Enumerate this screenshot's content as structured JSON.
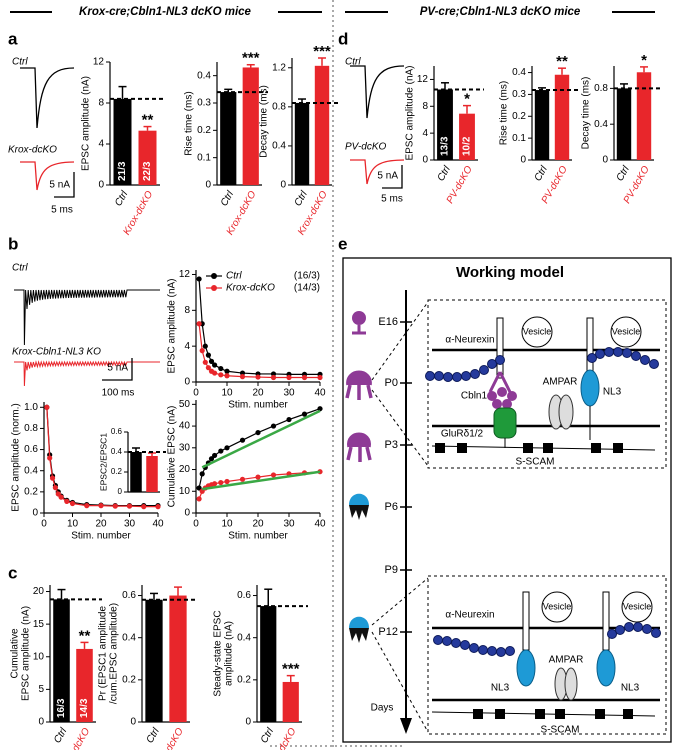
{
  "headers": {
    "left": "Krox-cre;Cbln1-NL3 dcKO mice",
    "right": "PV-cre;Cbln1-NL3 dcKO mice"
  },
  "panel_labels": [
    "a",
    "b",
    "c",
    "d",
    "e"
  ],
  "traces": {
    "a": {
      "labels": [
        "Ctrl",
        "Krox-dcKO"
      ],
      "scale": [
        "5 nA",
        "5 ms"
      ]
    },
    "b": {
      "labels": [
        "Ctrl",
        "Krox-Cbln1-NL3 KO"
      ],
      "scale": [
        "5 nA",
        "100 ms"
      ]
    },
    "d": {
      "labels": [
        "Ctrl",
        "PV-dcKO"
      ],
      "scale": [
        "5 nA",
        "5 ms"
      ]
    }
  },
  "chart_data": [
    {
      "type": "bar",
      "ylabel": [
        "EPSC amplitude (nA)"
      ],
      "categories": [
        "Ctrl",
        "Krox-dcKO"
      ],
      "values": [
        8.4,
        5.3
      ],
      "errors": [
        1.2,
        0.4
      ],
      "colors": [
        "#000000",
        "#e8262b"
      ],
      "ylim": [
        0,
        12
      ],
      "yticks": [
        0,
        4,
        8,
        12
      ],
      "significance": "**",
      "n_labels": [
        "21/3",
        "22/3"
      ],
      "reference_line": true
    },
    {
      "type": "bar",
      "ylabel": [
        "Rise time (ms)"
      ],
      "categories": [
        "Ctrl",
        "Krox-dcKO"
      ],
      "values": [
        0.34,
        0.43
      ],
      "errors": [
        0.01,
        0.01
      ],
      "colors": [
        "#000000",
        "#e8262b"
      ],
      "ylim": [
        0,
        0.45
      ],
      "yticks": [
        0,
        0.1,
        0.2,
        0.3,
        0.4
      ],
      "significance": "***",
      "reference_line": true
    },
    {
      "type": "bar",
      "ylabel": [
        "Decay time (ms)"
      ],
      "categories": [
        "Ctrl",
        "Krox-dcKO"
      ],
      "values": [
        0.84,
        1.22
      ],
      "errors": [
        0.04,
        0.08
      ],
      "colors": [
        "#000000",
        "#e8262b"
      ],
      "ylim": [
        0,
        1.3
      ],
      "yticks": [
        0,
        0.4,
        0.8,
        1.2
      ],
      "significance": "***",
      "reference_line": true
    },
    {
      "type": "bar",
      "ylabel": [
        "EPSC amplitude (nA)"
      ],
      "categories": [
        "Ctrl",
        "PV-dcKO"
      ],
      "values": [
        10.5,
        6.9
      ],
      "errors": [
        1.0,
        1.2
      ],
      "colors": [
        "#000000",
        "#e8262b"
      ],
      "ylim": [
        0,
        14
      ],
      "yticks": [
        0,
        4,
        8,
        12
      ],
      "significance": "*",
      "n_labels": [
        "13/3",
        "10/2"
      ],
      "reference_line": true
    },
    {
      "type": "bar",
      "ylabel": [
        "Rise time (ms)"
      ],
      "categories": [
        "Ctrl",
        "PV-dcKO"
      ],
      "values": [
        0.32,
        0.39
      ],
      "errors": [
        0.01,
        0.03
      ],
      "colors": [
        "#000000",
        "#e8262b"
      ],
      "ylim": [
        0,
        0.43
      ],
      "yticks": [
        0,
        0.1,
        0.2,
        0.3,
        0.4
      ],
      "significance": "**",
      "reference_line": true
    },
    {
      "type": "bar",
      "ylabel": [
        "Decay time (ms)"
      ],
      "categories": [
        "Ctrl",
        "PV-dcKO"
      ],
      "values": [
        0.8,
        0.98
      ],
      "errors": [
        0.05,
        0.06
      ],
      "colors": [
        "#000000",
        "#e8262b"
      ],
      "ylim": [
        0,
        1.05
      ],
      "yticks": [
        0,
        0.4,
        0.8
      ],
      "significance": "*",
      "reference_line": true
    },
    {
      "type": "line",
      "xlabel": "Stim. number",
      "ylabel": [
        "EPSC amplitude (nA)"
      ],
      "x": [
        1,
        2,
        3,
        4,
        5,
        6,
        8,
        10,
        15,
        20,
        25,
        30,
        35,
        40
      ],
      "series": [
        {
          "name": "Ctrl",
          "n_label": "(16/3)",
          "color": "#000000",
          "values": [
            11.5,
            6.5,
            4,
            3,
            2.3,
            1.9,
            1.5,
            1.2,
            1,
            0.9,
            0.9,
            0.85,
            0.85,
            0.85
          ]
        },
        {
          "name": "Krox-dcKO",
          "n_label": "(14/3)",
          "color": "#e8262b",
          "values": [
            6.5,
            3.5,
            2.2,
            1.6,
            1.2,
            1,
            0.8,
            0.7,
            0.6,
            0.55,
            0.5,
            0.5,
            0.5,
            0.5
          ]
        }
      ],
      "xlim": [
        0,
        40
      ],
      "xticks": [
        0,
        10,
        20,
        30,
        40
      ],
      "ylim": [
        0,
        12.5
      ],
      "yticks": [
        0,
        4,
        8,
        12
      ],
      "legend": "upper right"
    },
    {
      "type": "line",
      "xlabel": "Stim. number",
      "ylabel": [
        "EPSC amplitude (norm.)"
      ],
      "x": [
        1,
        2,
        3,
        4,
        5,
        6,
        8,
        10,
        15,
        20,
        25,
        30,
        35,
        40
      ],
      "series": [
        {
          "color": "#000000",
          "values": [
            1,
            0.55,
            0.35,
            0.26,
            0.2,
            0.16,
            0.12,
            0.1,
            0.08,
            0.075,
            0.07,
            0.07,
            0.07,
            0.07
          ]
        },
        {
          "color": "#e8262b",
          "values": [
            1,
            0.52,
            0.33,
            0.24,
            0.18,
            0.15,
            0.11,
            0.09,
            0.07,
            0.07,
            0.065,
            0.065,
            0.06,
            0.06
          ]
        }
      ],
      "xlim": [
        0,
        40
      ],
      "xticks": [
        0,
        10,
        20,
        30,
        40
      ],
      "ylim": [
        0,
        1.05
      ],
      "yticks": [
        0,
        0.2,
        0.4,
        0.6,
        0.8,
        {
          "value": 1,
          "label": "1.0"
        }
      ]
    },
    {
      "type": "bar",
      "ylabel": [
        "EPSC2/EPSC1"
      ],
      "values": [
        0.4,
        0.36
      ],
      "errors": [
        0.04,
        0.03
      ],
      "colors": [
        "#000000",
        "#e8262b"
      ],
      "ylim": [
        0,
        0.6
      ],
      "yticks": [
        0,
        0.2,
        0.4,
        0.6
      ],
      "reference_line": true
    },
    {
      "type": "line",
      "xlabel": "Stim. number",
      "ylabel": [
        "Cumulative EPSC (nA)"
      ],
      "x": [
        1,
        2,
        3,
        4,
        5,
        6,
        8,
        10,
        15,
        20,
        25,
        30,
        35,
        40
      ],
      "series": [
        {
          "color": "#000000",
          "values": [
            11.5,
            18,
            21,
            23,
            25,
            26.5,
            28.5,
            30,
            33.5,
            37,
            40,
            43,
            45.5,
            48
          ]
        },
        {
          "color": "#e8262b",
          "values": [
            6.5,
            10,
            11.5,
            12.5,
            13,
            13.5,
            14,
            14.5,
            15.5,
            16.5,
            17.5,
            18,
            18.5,
            19
          ]
        }
      ],
      "fits": [
        {
          "color": "#3aa845",
          "x": [
            2,
            40
          ],
          "values": [
            21,
            47
          ]
        },
        {
          "color": "#3aa845",
          "x": [
            2,
            40
          ],
          "values": [
            11,
            19
          ]
        }
      ],
      "xlim": [
        0,
        40
      ],
      "xticks": [
        0,
        10,
        20,
        30,
        40
      ],
      "ylim": [
        0,
        52
      ],
      "yticks": [
        0,
        10,
        20,
        30,
        40,
        50
      ]
    },
    {
      "type": "bar",
      "ylabel": [
        "Cumulative",
        "EPSC amplitude (nA)"
      ],
      "categories": [
        "Ctrl",
        "Krox-dcKO"
      ],
      "values": [
        18.8,
        11.2
      ],
      "errors": [
        1.5,
        1.0
      ],
      "colors": [
        "#000000",
        "#e8262b"
      ],
      "ylim": [
        0,
        21
      ],
      "yticks": [
        0,
        5,
        10,
        15,
        20
      ],
      "significance": "**",
      "n_labels": [
        "16/3",
        "14/3"
      ],
      "reference_line": true
    },
    {
      "type": "bar",
      "ylabel": [
        "Pr (EPSC1 amplitude",
        "/cum.EPSC amplitude)"
      ],
      "categories": [
        "Ctrl",
        "Krox-dcKO"
      ],
      "values": [
        0.58,
        0.6
      ],
      "errors": [
        0.03,
        0.04
      ],
      "colors": [
        "#000000",
        "#e8262b"
      ],
      "ylim": [
        0,
        0.65
      ],
      "yticks": [
        0,
        0.2,
        0.4,
        0.6
      ],
      "reference_line": true
    },
    {
      "type": "bar",
      "ylabel": [
        "Steady-state EPSC",
        "amplitude (nA)"
      ],
      "categories": [
        "Ctrl",
        "Krox-dcKO"
      ],
      "values": [
        0.55,
        0.19
      ],
      "errors": [
        0.08,
        0.03
      ],
      "colors": [
        "#000000",
        "#e8262b"
      ],
      "ylim": [
        0,
        0.65
      ],
      "yticks": [
        0,
        0.2,
        0.4,
        0.6
      ],
      "significance": "***",
      "reference_line": true
    }
  ],
  "working_model": {
    "title": "Working model",
    "stages": [
      "E16",
      "P0",
      "P3",
      "P6",
      "P9",
      "P12"
    ],
    "axis_label": "Days",
    "upper": {
      "labels": [
        "α-Neurexin",
        "Vesicle",
        "Vesicle",
        "Cbln1",
        "AMPAR",
        "NL3",
        "GluRδ1/2",
        "S-SCAM"
      ]
    },
    "lower": {
      "labels": [
        "α-Neurexin",
        "Vesicle",
        "Vesicle",
        "AMPAR",
        "NL3",
        "NL3",
        "S-SCAM"
      ]
    }
  }
}
